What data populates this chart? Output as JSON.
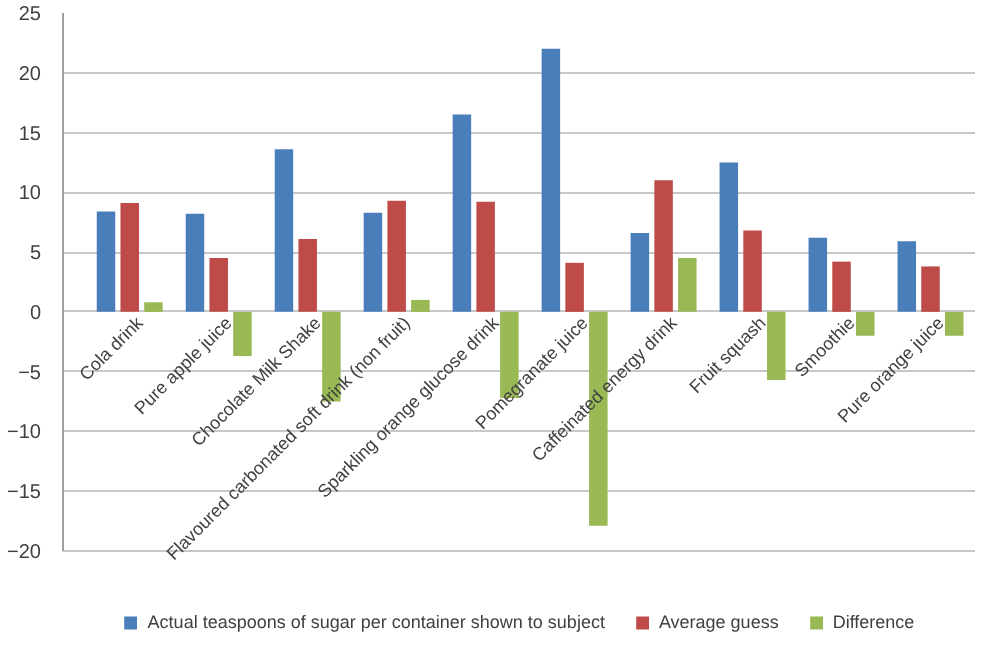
{
  "chart_data": {
    "type": "bar",
    "categories": [
      "Cola drink",
      "Pure apple juice",
      "Chocolate Milk Shake",
      "Flavoured carbonated soft drink (non fruit)",
      "Sparkling orange glucose drink",
      "Pomegranate juice",
      "Caffeinated energy drink",
      "Fruit squash",
      "Smoothie",
      "Pure orange juice"
    ],
    "series": [
      {
        "name": "Actual teaspoons of sugar per container shown to subject",
        "color": "#4a7ebb",
        "values": [
          8.4,
          8.2,
          13.6,
          8.3,
          16.5,
          22,
          6.6,
          12.5,
          6.2,
          5.9
        ]
      },
      {
        "name": "Average guess",
        "color": "#be4b48",
        "values": [
          9.1,
          4.5,
          6.1,
          9.3,
          9.2,
          4.1,
          11.0,
          6.8,
          4.2,
          3.8
        ]
      },
      {
        "name": "Difference",
        "color": "#98b954",
        "values": [
          0.8,
          -3.7,
          -7.5,
          1.0,
          -7.2,
          -17.9,
          4.5,
          -5.7,
          -2.0,
          -2.0
        ]
      }
    ],
    "ylim": [
      -20,
      25
    ],
    "yticks": [
      -20,
      -15,
      -10,
      -5,
      0,
      5,
      10,
      15,
      20,
      25
    ],
    "grid": "y",
    "legend": "bottom"
  }
}
